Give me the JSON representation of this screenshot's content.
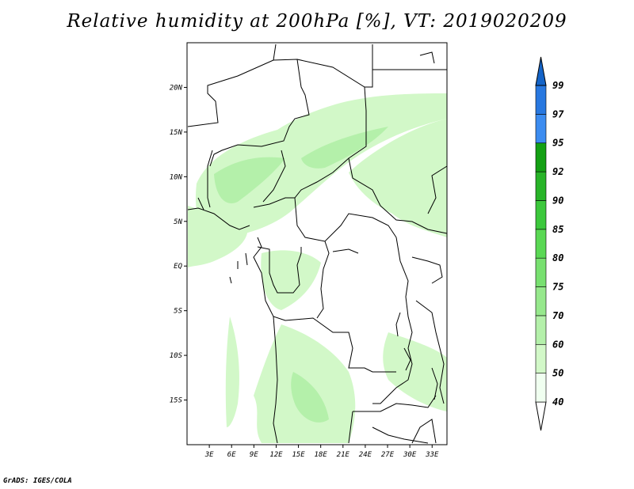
{
  "title": "Relative humidity at 200hPa [%], VT: 2019020209",
  "credit": "GrADS: IGES/COLA",
  "map": {
    "lat_ticks": [
      {
        "lat": 20,
        "label": "20N"
      },
      {
        "lat": 15,
        "label": "15N"
      },
      {
        "lat": 10,
        "label": "10N"
      },
      {
        "lat": 5,
        "label": "5N"
      },
      {
        "lat": 0,
        "label": "EQ"
      },
      {
        "lat": -5,
        "label": "5S"
      },
      {
        "lat": -10,
        "label": "10S"
      },
      {
        "lat": -15,
        "label": "15S"
      }
    ],
    "lon_ticks": [
      {
        "lon": 3,
        "label": "3E"
      },
      {
        "lon": 6,
        "label": "6E"
      },
      {
        "lon": 9,
        "label": "9E"
      },
      {
        "lon": 12,
        "label": "12E"
      },
      {
        "lon": 15,
        "label": "15E"
      },
      {
        "lon": 18,
        "label": "18E"
      },
      {
        "lon": 21,
        "label": "21E"
      },
      {
        "lon": 24,
        "label": "24E"
      },
      {
        "lon": 27,
        "label": "27E"
      },
      {
        "lon": 30,
        "label": "30E"
      },
      {
        "lon": 33,
        "label": "33E"
      }
    ],
    "lon_range": [
      0,
      35
    ],
    "lat_range": [
      -20,
      25
    ]
  },
  "colorbar": {
    "levels": [
      "40",
      "50",
      "60",
      "70",
      "75",
      "80",
      "85",
      "90",
      "92",
      "95",
      "97",
      "99"
    ],
    "colors": [
      "#f0fff0",
      "#d2f8c8",
      "#b4f0aa",
      "#96e88c",
      "#78e070",
      "#5ad854",
      "#3cc83c",
      "#28b428",
      "#14a014",
      "#3c8cf0",
      "#2878e0",
      "#1464c8"
    ],
    "under_color": "#ffffff",
    "over_color": "#1464c8"
  },
  "colors": {
    "land_line": "#000000",
    "fill_light": "#d2f8c8",
    "fill_mid": "#b4f0aa"
  }
}
